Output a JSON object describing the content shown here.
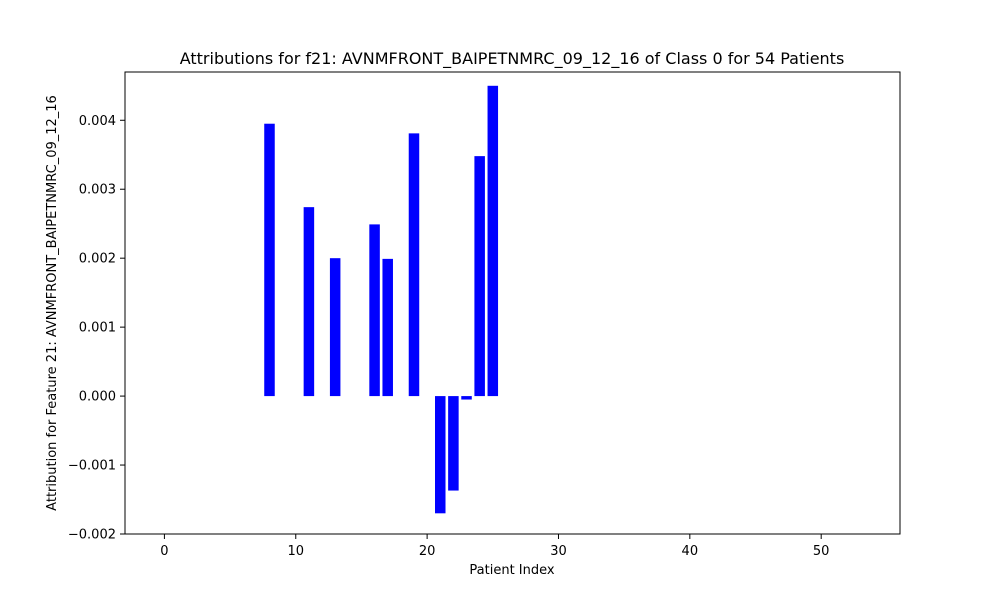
{
  "chart_data": {
    "type": "bar",
    "title": "Attributions for f21: AVNMFRONT_BAIPETNMRC_09_12_16 of Class 0 for 54 Patients",
    "xlabel": "Patient Index",
    "ylabel": "Attribution for Feature 21: AVNMFRONT_BAIPETNMRC_09_12_16",
    "xlim": [
      -3,
      56
    ],
    "ylim": [
      -0.002,
      0.0047
    ],
    "xticks": [
      0,
      10,
      20,
      30,
      40,
      50
    ],
    "xtick_labels": [
      "0",
      "10",
      "20",
      "30",
      "40",
      "50"
    ],
    "yticks": [
      -0.002,
      -0.001,
      0.0,
      0.001,
      0.002,
      0.003,
      0.004
    ],
    "ytick_labels": [
      "−0.002",
      "−0.001",
      "0.000",
      "0.001",
      "0.002",
      "0.003",
      "0.004"
    ],
    "grid": false,
    "bar_color": "#0000ff",
    "bar_width": 0.8,
    "x": [
      8,
      11,
      13,
      16,
      17,
      19,
      21,
      22,
      23,
      24,
      25
    ],
    "values": [
      0.00395,
      0.00274,
      0.002,
      0.00249,
      0.00199,
      0.00381,
      -0.0017,
      -0.00137,
      -5e-05,
      0.00348,
      0.0045
    ]
  }
}
